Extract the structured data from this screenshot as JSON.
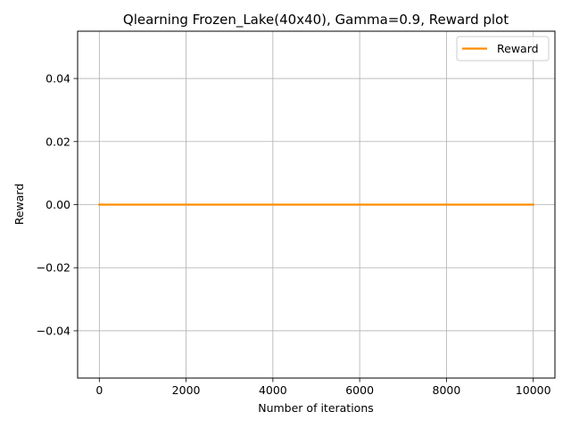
{
  "chart_data": {
    "type": "line",
    "title": "Qlearning Frozen_Lake(40x40),  Gamma=0.9, Reward plot",
    "xlabel": "Number of iterations",
    "ylabel": "Reward",
    "xlim": [
      -500,
      10500
    ],
    "ylim": [
      -0.055,
      0.055
    ],
    "xticks": [
      0,
      2000,
      4000,
      6000,
      8000,
      10000
    ],
    "xtick_labels": [
      "0",
      "2000",
      "4000",
      "6000",
      "8000",
      "10000"
    ],
    "yticks": [
      -0.04,
      -0.02,
      0.0,
      0.02,
      0.04
    ],
    "ytick_labels": [
      "−0.04",
      "−0.02",
      "0.00",
      "0.02",
      "0.04"
    ],
    "grid": true,
    "legend_position": "top-right",
    "series": [
      {
        "name": "Reward",
        "color": "#ff8c00",
        "x": [
          0,
          10000
        ],
        "y": [
          0,
          0
        ]
      }
    ]
  }
}
